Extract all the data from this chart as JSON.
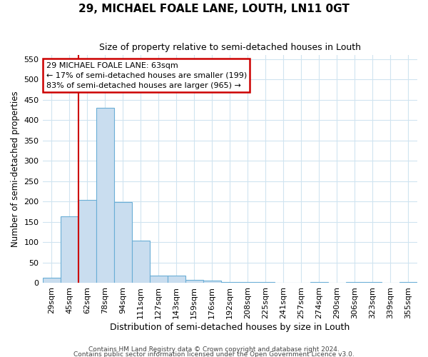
{
  "title": "29, MICHAEL FOALE LANE, LOUTH, LN11 0GT",
  "subtitle": "Size of property relative to semi-detached houses in Louth",
  "xlabel": "Distribution of semi-detached houses by size in Louth",
  "ylabel": "Number of semi-detached properties",
  "categories": [
    "29sqm",
    "45sqm",
    "62sqm",
    "78sqm",
    "94sqm",
    "111sqm",
    "127sqm",
    "143sqm",
    "159sqm",
    "176sqm",
    "192sqm",
    "208sqm",
    "225sqm",
    "241sqm",
    "257sqm",
    "274sqm",
    "290sqm",
    "306sqm",
    "323sqm",
    "339sqm",
    "355sqm"
  ],
  "values": [
    13,
    163,
    204,
    430,
    198,
    105,
    19,
    18,
    7,
    6,
    2,
    2,
    2,
    0,
    0,
    3,
    0,
    3,
    3,
    0,
    3
  ],
  "bar_color": "#c9ddef",
  "bar_edge_color": "#6aaed6",
  "red_line_x": 1.5,
  "annotation_line1": "29 MICHAEL FOALE LANE: 63sqm",
  "annotation_line2": "← 17% of semi-detached houses are smaller (199)",
  "annotation_line3": "83% of semi-detached houses are larger (965) →",
  "annotation_box_color": "#ffffff",
  "annotation_box_edge": "#cc0000",
  "red_line_color": "#cc0000",
  "ylim": [
    0,
    560
  ],
  "yticks": [
    0,
    50,
    100,
    150,
    200,
    250,
    300,
    350,
    400,
    450,
    500,
    550
  ],
  "footer1": "Contains HM Land Registry data © Crown copyright and database right 2024.",
  "footer2": "Contains public sector information licensed under the Open Government Licence v3.0.",
  "bg_color": "#ffffff",
  "grid_color": "#d0e4f0"
}
